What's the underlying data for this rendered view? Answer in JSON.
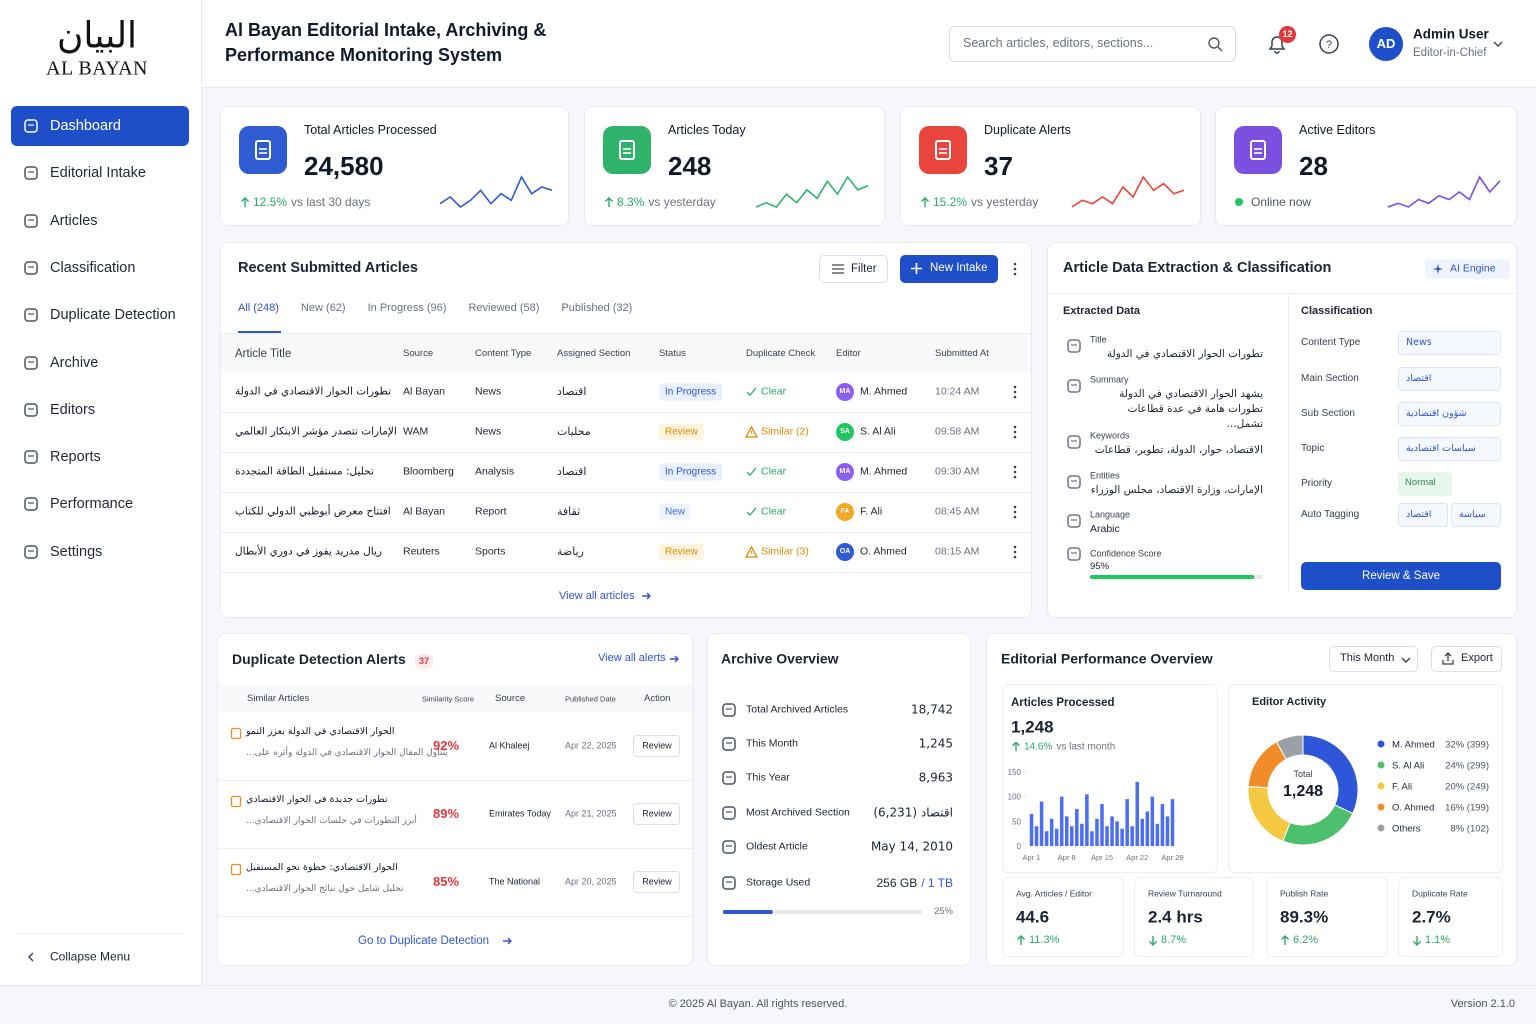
{
  "brand": {
    "arabic": "البيان",
    "name": "AL BAYAN"
  },
  "nav": {
    "items": [
      "Dashboard",
      "Editorial Intake",
      "Articles",
      "Classification",
      "Duplicate Detection",
      "Archive",
      "Editors",
      "Reports",
      "Performance",
      "Settings"
    ],
    "active": 0,
    "collapse": "Collapse Menu"
  },
  "header": {
    "title": "Al Bayan Editorial Intake, Archiving & Performance Monitoring System",
    "search_placeholder": "Search articles, editors, sections...",
    "notifications": "12",
    "user": {
      "initials": "AD",
      "name": "Admin User",
      "role": "Editor-in-Chief"
    }
  },
  "kpis": [
    {
      "label": "Total Articles Processed",
      "value": "24,580",
      "change": "12.5%",
      "note": "vs last 30 days",
      "color": "#2f5bd3",
      "trend": [
        4,
        6,
        3,
        5,
        8,
        4,
        7,
        5,
        12,
        7,
        9,
        8
      ]
    },
    {
      "label": "Articles Today",
      "value": "248",
      "change": "8.3%",
      "note": "vs yesterday",
      "color": "#2fb36a",
      "trend": [
        3,
        4,
        3,
        6,
        4,
        7,
        5,
        9,
        6,
        10,
        7,
        8
      ]
    },
    {
      "label": "Duplicate Alerts",
      "value": "37",
      "change": "15.2%",
      "note": "vs yesterday",
      "color": "#e8453c",
      "trend": [
        2,
        4,
        3,
        5,
        3,
        8,
        5,
        11,
        7,
        9,
        6,
        7
      ]
    },
    {
      "label": "Active Editors",
      "value": "28",
      "status": "Online now",
      "color": "#7b4fe0",
      "trend": [
        2,
        3,
        2,
        4,
        3,
        5,
        4,
        6,
        4,
        10,
        6,
        9
      ]
    }
  ],
  "recent": {
    "title": "Recent Submitted Articles",
    "filter": "Filter",
    "new_intake": "New Intake",
    "tabs": [
      "All (248)",
      "New (62)",
      "In Progress (96)",
      "Reviewed (58)",
      "Published (32)"
    ],
    "active_tab": 0,
    "columns": [
      "Article Title",
      "Source",
      "Content Type",
      "Assigned Section",
      "Status",
      "Duplicate Check",
      "Editor",
      "Submitted At"
    ],
    "rows": [
      {
        "title": "تطورات الحوار الاقتصادي في الدولة",
        "source": "Al Bayan",
        "type": "News",
        "section": "اقتصاد",
        "status": "In Progress",
        "status_tone": "blue",
        "duplicate": "Clear",
        "duplicate_tone": "green",
        "initials": "MA",
        "editor": "M. Ahmed",
        "avatar": "#8b5cf6",
        "time": "10:24 AM"
      },
      {
        "title": "الإمارات تتصدر مؤشر الابتكار العالمي",
        "source": "WAM",
        "type": "News",
        "section": "محليات",
        "status": "Review",
        "status_tone": "amber",
        "duplicate": "Similar (2)",
        "duplicate_tone": "amber",
        "initials": "SA",
        "editor": "S. Al Ali",
        "avatar": "#22c55e",
        "time": "09:58 AM"
      },
      {
        "title": "تحليل: مستقبل الطاقة المتجددة",
        "source": "Bloomberg",
        "type": "Analysis",
        "section": "اقتصاد",
        "status": "In Progress",
        "status_tone": "blue",
        "duplicate": "Clear",
        "duplicate_tone": "green",
        "initials": "MA",
        "editor": "M. Ahmed",
        "avatar": "#8b5cf6",
        "time": "09:30 AM"
      },
      {
        "title": "افتتاح معرض أبوظبي الدولي للكتاب",
        "source": "Al Bayan",
        "type": "Report",
        "section": "ثقافة",
        "status": "New",
        "status_tone": "sky",
        "duplicate": "Clear",
        "duplicate_tone": "green",
        "initials": "FA",
        "editor": "F. Ali",
        "avatar": "#f5a623",
        "time": "08:45 AM"
      },
      {
        "title": "ريال مدريد يفوز في دوري الأبطال",
        "source": "Reuters",
        "type": "Sports",
        "section": "رياضة",
        "status": "Review",
        "status_tone": "amber",
        "duplicate": "Similar (3)",
        "duplicate_tone": "amber",
        "initials": "OA",
        "editor": "O. Ahmed",
        "avatar": "#2f5bd3",
        "time": "08:15 AM"
      }
    ],
    "footer": "View all articles"
  },
  "extraction": {
    "title": "Article Data Extraction & Classification",
    "badge": "AI Engine",
    "extracted_title": "Extracted Data",
    "fields": [
      {
        "label": "Title",
        "value": "تطورات الحوار الاقتصادي في الدولة"
      },
      {
        "label": "Summary",
        "value": "يشهد الحوار الاقتصادي في الدولة تطورات هامة في عدة قطاعات تشمل..."
      },
      {
        "label": "Keywords",
        "value": "الاقتصاد، حوار، الدولة، تطوير، قطاعات"
      },
      {
        "label": "Entities",
        "value": "الإمارات، وزارة الاقتصاد، مجلس الوزراء"
      },
      {
        "label": "Language",
        "value": "Arabic"
      }
    ],
    "confidence": {
      "label": "Confidence Score",
      "value": 95,
      "value_label": "95%"
    },
    "classification_title": "Classification",
    "classification": [
      {
        "label": "Content Type",
        "values": [
          "News"
        ]
      },
      {
        "label": "Main Section",
        "values": [
          "اقتصاد"
        ]
      },
      {
        "label": "Sub Section",
        "values": [
          "شؤون اقتصادية"
        ]
      },
      {
        "label": "Topic",
        "values": [
          "سياسات اقتصادية"
        ]
      },
      {
        "label": "Priority",
        "values": [
          "Normal"
        ],
        "tone": "green"
      },
      {
        "label": "Auto Tagging",
        "values": [
          "اقتصاد",
          "سياسة"
        ]
      }
    ],
    "button": "Review & Save"
  },
  "duplicates": {
    "title": "Duplicate Detection Alerts",
    "count": "37",
    "link": "View all alerts",
    "columns": [
      "Similar Articles",
      "Similarity Score",
      "Source",
      "Published Date",
      "Action"
    ],
    "rows": [
      {
        "title": "الحوار الاقتصادي في الدولة يعزز النمو",
        "snippet": "يتناول المقال الحوار الاقتصادي في الدولة وأثره على...",
        "score": "92%",
        "source": "Al Khaleej",
        "date": "Apr 22, 2025",
        "action": "Review"
      },
      {
        "title": "تطورات جديدة في الحوار الاقتصادي",
        "snippet": "أبرز التطورات في جلسات الحوار الاقتصادي...",
        "score": "89%",
        "source": "Emirates Today",
        "date": "Apr 21, 2025",
        "action": "Review"
      },
      {
        "title": "الحوار الاقتصادي: خطوة نحو المستقبل",
        "snippet": "تحليل شامل حول نتائج الحوار الاقتصادي...",
        "score": "85%",
        "source": "The National",
        "date": "Apr 20, 2025",
        "action": "Review"
      }
    ],
    "footer": "Go to Duplicate Detection"
  },
  "archive": {
    "title": "Archive Overview",
    "rows": [
      {
        "label": "Total Archived Articles",
        "value": "18,742"
      },
      {
        "label": "This Month",
        "value": "1,245"
      },
      {
        "label": "This Year",
        "value": "8,963"
      },
      {
        "label": "Most Archived Section",
        "value": "اقتصاد (6,231)"
      },
      {
        "label": "Oldest Article",
        "value": "May 14, 2010"
      }
    ],
    "storage": {
      "label": "Storage Used",
      "used": "256 GB",
      "total": "/ 1 TB",
      "percent": 25,
      "percent_label": "25%"
    }
  },
  "performance": {
    "title": "Editorial Performance Overview",
    "period": "This Month",
    "export": "Export",
    "processed": {
      "label": "Articles Processed",
      "value": "1,248",
      "change": "14.6%",
      "note": "vs last month"
    },
    "activity_title": "Editor Activity",
    "metrics": [
      {
        "label": "Avg. Articles / Editor",
        "value": "44.6",
        "change": "11.3%",
        "direction": "up"
      },
      {
        "label": "Review Turnaround",
        "value": "2.4 hrs",
        "change": "8.7%",
        "direction": "down"
      },
      {
        "label": "Publish Rate",
        "value": "89.3%",
        "change": "6.2%",
        "direction": "up"
      },
      {
        "label": "Duplicate Rate",
        "value": "2.7%",
        "change": "1.1%",
        "direction": "down"
      }
    ]
  },
  "chart_data": [
    {
      "type": "bar",
      "categories": [
        "Apr 1",
        null,
        null,
        null,
        null,
        null,
        null,
        "Apr 8",
        null,
        null,
        null,
        null,
        null,
        null,
        "Apr 15",
        null,
        null,
        null,
        null,
        null,
        null,
        "Apr 22",
        null,
        null,
        null,
        null,
        null,
        null,
        "Apr 29"
      ],
      "values": [
        65,
        40,
        90,
        30,
        55,
        35,
        100,
        60,
        40,
        75,
        45,
        105,
        30,
        55,
        85,
        40,
        60,
        50,
        35,
        95,
        40,
        130,
        55,
        70,
        100,
        45,
        85,
        60,
        95
      ],
      "color": "#4c6ef5",
      "ylim": [
        0,
        150
      ],
      "yticks": [
        0,
        50,
        100,
        150
      ]
    },
    {
      "type": "donut",
      "center_label": "Total",
      "center_value": "1,248",
      "categories": [
        "M. Ahmed",
        "S. Al Ali",
        "F. Ali",
        "O. Ahmed",
        "Others"
      ],
      "values": [
        32,
        24,
        20,
        16,
        8
      ],
      "value_labels": [
        "32% (399)",
        "24% (299)",
        "20% (249)",
        "16% (199)",
        "8% (102)"
      ],
      "colors": [
        "#2f56d9",
        "#4cc06d",
        "#f5c842",
        "#f28c28",
        "#9aa0a6"
      ]
    }
  ],
  "footer": {
    "copyright": "© 2025 Al Bayan. All rights reserved.",
    "version": "Version 2.1.0"
  }
}
